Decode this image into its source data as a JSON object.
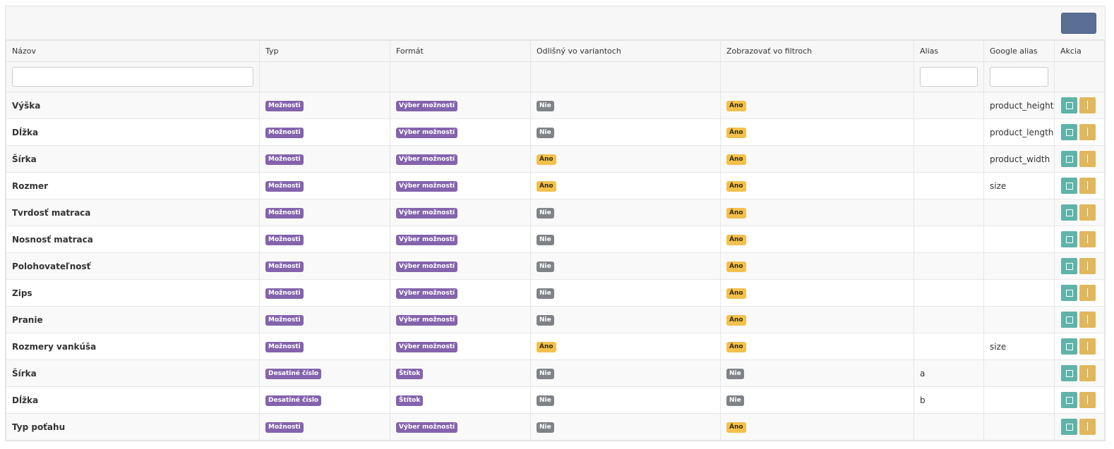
{
  "header": {
    "columns": [
      "Názov",
      "Typ",
      "Formát",
      "Odlišný vo variantoch",
      "Zobrazovať vo filtroch",
      "Alias",
      "Google alias",
      "Akcia"
    ]
  },
  "rows": [
    {
      "name": "Výška",
      "type": {
        "text": "Možnosti",
        "color": "#8463ad"
      },
      "format": {
        "text": "Výber možností",
        "color": "#8463ad"
      },
      "variant": {
        "text": "Nie",
        "color": "#7f8287"
      },
      "filter": {
        "text": "Áno",
        "color": "#f2c04c"
      },
      "google_alias": "product_height"
    },
    {
      "name": "Dĺžka",
      "type": {
        "text": "Možnosti",
        "color": "#8463ad"
      },
      "format": {
        "text": "Výber možností",
        "color": "#8463ad"
      },
      "variant": {
        "text": "Nie",
        "color": "#7f8287"
      },
      "filter": {
        "text": "Áno",
        "color": "#f2c04c"
      },
      "google_alias": "product_length"
    },
    {
      "name": "Šírka",
      "type": {
        "text": "Možnosti",
        "color": "#8463ad"
      },
      "format": {
        "text": "Výber možností",
        "color": "#8463ad"
      },
      "variant": {
        "text": "Áno",
        "color": "#f2c04c"
      },
      "filter": {
        "text": "Áno",
        "color": "#f2c04c"
      },
      "google_alias": "product_width"
    },
    {
      "name": "Rozmer",
      "type": {
        "text": "Možnosti",
        "color": "#8463ad"
      },
      "format": {
        "text": "Výber možností",
        "color": "#8463ad"
      },
      "variant": {
        "text": "Áno",
        "color": "#f2c04c"
      },
      "filter": {
        "text": "Áno",
        "color": "#f2c04c"
      },
      "google_alias": "size"
    },
    {
      "name": "Tvrdosť matraca",
      "type": {
        "text": "Možnosti",
        "color": "#8463ad"
      },
      "format": {
        "text": "Výber možností",
        "color": "#8463ad"
      },
      "variant": {
        "text": "Nie",
        "color": "#7f8287"
      },
      "filter": {
        "text": "Áno",
        "color": "#f2c04c"
      }
    },
    {
      "name": "Nosnosť matraca",
      "type": {
        "text": "Možnosti",
        "color": "#8463ad"
      },
      "format": {
        "text": "Výber možností",
        "color": "#8463ad"
      },
      "variant": {
        "text": "Nie",
        "color": "#7f8287"
      },
      "filter": {
        "text": "Áno",
        "color": "#f2c04c"
      }
    },
    {
      "name": "Polohovateľnosť",
      "type": {
        "text": "Možnosti",
        "color": "#8463ad"
      },
      "format": {
        "text": "Výber možností",
        "color": "#8463ad"
      },
      "variant": {
        "text": "Nie",
        "color": "#7f8287"
      },
      "filter": {
        "text": "Áno",
        "color": "#f2c04c"
      }
    },
    {
      "name": "Zips",
      "type": {
        "text": "Možnosti",
        "color": "#8463ad"
      },
      "format": {
        "text": "Výber možností",
        "color": "#8463ad"
      },
      "variant": {
        "text": "Nie",
        "color": "#7f8287"
      },
      "filter": {
        "text": "Áno",
        "color": "#f2c04c"
      }
    },
    {
      "name": "Pranie",
      "type": {
        "text": "Možnosti",
        "color": "#8463ad"
      },
      "format": {
        "text": "Výber možností",
        "color": "#8463ad"
      },
      "variant": {
        "text": "Nie",
        "color": "#7f8287"
      },
      "filter": {
        "text": "Áno",
        "color": "#f2c04c"
      }
    },
    {
      "name": "Rozmery vankúša",
      "type": {
        "text": "Možnosti",
        "color": "#8463ad"
      },
      "format": {
        "text": "Výber možností",
        "color": "#8463ad"
      },
      "variant": {
        "text": "Áno",
        "color": "#f2c04c"
      },
      "filter": {
        "text": "Áno",
        "color": "#f2c04c"
      },
      "google_alias": "size"
    },
    {
      "name": "Šírka",
      "type": {
        "text": "Desatiné číslo",
        "color": "#8463ad"
      },
      "format": {
        "text": "Štítok",
        "color": "#8463ad"
      },
      "variant": {
        "text": "Nie",
        "color": "#7f8287"
      },
      "filter": {
        "text": "Nie",
        "color": "#7f8287"
      },
      "alias": "a"
    },
    {
      "name": "Dĺžka",
      "type": {
        "text": "Desatiné číslo",
        "color": "#8463ad"
      },
      "format": {
        "text": "Štítok",
        "color": "#8463ad"
      },
      "variant": {
        "text": "Nie",
        "color": "#7f8287"
      },
      "filter": {
        "text": "Nie",
        "color": "#7f8287"
      },
      "alias": "b"
    },
    {
      "name": "Typ poťahu",
      "type": {
        "text": "Možnosti",
        "color": "#8463ad"
      },
      "format": {
        "text": "Výber možností",
        "color": "#8463ad"
      },
      "variant": {
        "text": "Nie",
        "color": "#7f8287"
      },
      "filter": {
        "text": "Áno",
        "color": "#f2c04c"
      }
    }
  ]
}
